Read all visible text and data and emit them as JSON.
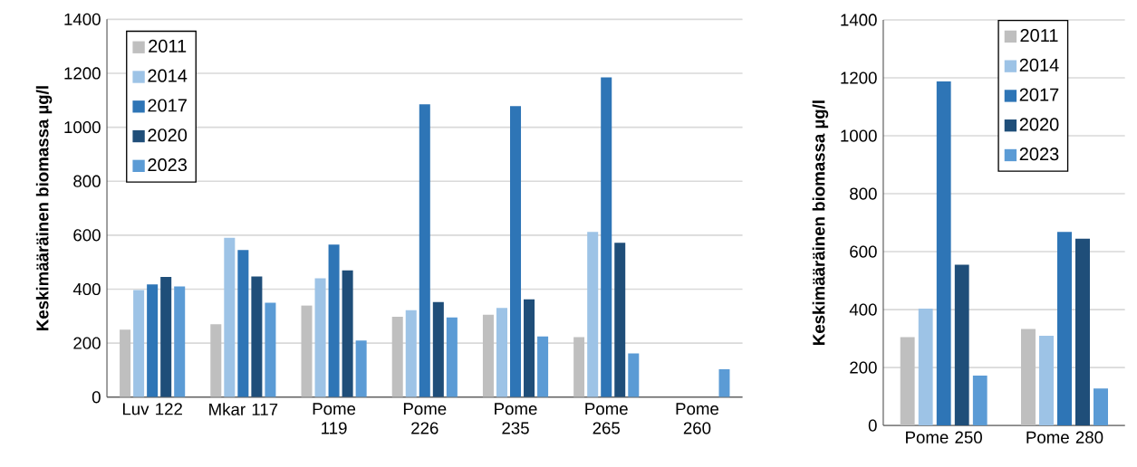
{
  "chart_data": [
    {
      "type": "bar",
      "ylabel": "Keskimääräinen biomassa µg/l",
      "categories": [
        "Luv 122",
        "Mkar 117",
        "Pome 119",
        "Pome 226",
        "Pome 235",
        "Pome 265",
        "Pome 260"
      ],
      "ylim": [
        0,
        1400
      ],
      "yticks": [
        0,
        200,
        400,
        600,
        800,
        1000,
        1200,
        1400
      ],
      "grid": "y",
      "legend": "top left",
      "series": [
        {
          "name": "2011",
          "color": "#bfbfbf",
          "values": [
            250,
            270,
            340,
            298,
            305,
            222,
            null
          ]
        },
        {
          "name": "2014",
          "color": "#9dc3e6",
          "values": [
            397,
            590,
            440,
            322,
            330,
            612,
            null
          ]
        },
        {
          "name": "2017",
          "color": "#2e75b6",
          "values": [
            418,
            545,
            565,
            1085,
            1078,
            1185,
            null
          ]
        },
        {
          "name": "2020",
          "color": "#1f4e79",
          "values": [
            445,
            447,
            470,
            352,
            362,
            572,
            null
          ]
        },
        {
          "name": "2023",
          "color": "#5b9bd5",
          "values": [
            410,
            350,
            210,
            295,
            225,
            162,
            103
          ]
        }
      ]
    },
    {
      "type": "bar",
      "ylabel": "Keskimääräinen biomassa µg/l",
      "categories": [
        "Pome 250",
        "Pome 280"
      ],
      "ylim": [
        0,
        1400
      ],
      "yticks": [
        0,
        200,
        400,
        600,
        800,
        1000,
        1200,
        1400
      ],
      "grid": "y",
      "legend": "top",
      "series": [
        {
          "name": "2011",
          "color": "#bfbfbf",
          "values": [
            305,
            333
          ]
        },
        {
          "name": "2014",
          "color": "#9dc3e6",
          "values": [
            403,
            310
          ]
        },
        {
          "name": "2017",
          "color": "#2e75b6",
          "values": [
            1188,
            668
          ]
        },
        {
          "name": "2020",
          "color": "#1f4e79",
          "values": [
            555,
            645
          ]
        },
        {
          "name": "2023",
          "color": "#5b9bd5",
          "values": [
            172,
            128
          ]
        }
      ]
    }
  ]
}
